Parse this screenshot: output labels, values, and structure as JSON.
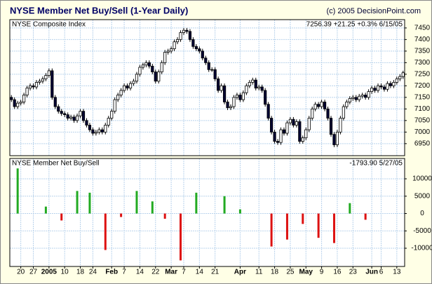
{
  "header": {
    "title": "NYSE Member Net Buy/Sell (1-Year Daily)",
    "credit": "(c) 2005 DecisionPoint.com"
  },
  "chart_data": [
    {
      "type": "candlestick",
      "subtitle": "NYSE Composite Index",
      "annotation": "7256.39 +21.25 +0.3% 6/15/05",
      "up_color": "#ffffff",
      "down_color": "#000033",
      "edge_color": "#000000",
      "grid": true,
      "grid_color": "#b9d3ec",
      "categories": [
        null,
        null,
        null,
        "20",
        null,
        null,
        null,
        "27",
        null,
        null,
        null,
        null,
        "2005",
        null,
        null,
        null,
        null,
        "10",
        null,
        null,
        null,
        null,
        "18",
        null,
        null,
        null,
        "24",
        null,
        null,
        null,
        null,
        null,
        "Feb",
        null,
        null,
        null,
        "7",
        null,
        null,
        null,
        null,
        "14",
        null,
        null,
        null,
        null,
        "22",
        null,
        null,
        null,
        null,
        "Mar",
        null,
        null,
        null,
        "7",
        null,
        null,
        null,
        null,
        "14",
        null,
        null,
        null,
        null,
        "21",
        null,
        null,
        null,
        null,
        null,
        null,
        null,
        "Apr",
        null,
        null,
        null,
        null,
        null,
        "11",
        null,
        null,
        null,
        null,
        "18",
        null,
        null,
        null,
        null,
        "25",
        null,
        null,
        null,
        null,
        "May",
        null,
        null,
        null,
        null,
        "9",
        null,
        null,
        null,
        null,
        "16",
        null,
        null,
        null,
        null,
        "23",
        null,
        null,
        null,
        null,
        null,
        "Jun",
        null,
        null,
        "6",
        null,
        null,
        null,
        null,
        "13",
        null,
        null
      ],
      "open": [
        7150,
        7140,
        7110,
        7125,
        7130,
        7160,
        7190,
        7200,
        7195,
        7215,
        7220,
        7230,
        7245,
        7265,
        7150,
        7110,
        7090,
        7080,
        7075,
        7060,
        7065,
        7050,
        7070,
        7090,
        7050,
        7030,
        7010,
        6995,
        7000,
        7010,
        7000,
        7030,
        7060,
        7090,
        7140,
        7160,
        7180,
        7200,
        7190,
        7210,
        7220,
        7250,
        7280,
        7290,
        7300,
        7285,
        7260,
        7220,
        7260,
        7300,
        7345,
        7350,
        7360,
        7390,
        7400,
        7430,
        7440,
        7435,
        7400,
        7370,
        7360,
        7350,
        7320,
        7300,
        7270,
        7270,
        7230,
        7180,
        7200,
        7130,
        7105,
        7110,
        7150,
        7160,
        7140,
        7170,
        7200,
        7215,
        7225,
        7190,
        7195,
        7180,
        7120,
        7060,
        7000,
        6960,
        6955,
        7010,
        6995,
        7040,
        7055,
        7030,
        7045,
        6960,
        6975,
        7010,
        7060,
        7100,
        7120,
        7110,
        7130,
        7100,
        7060,
        6990,
        6945,
        7000,
        7060,
        7110,
        7130,
        7145,
        7150,
        7140,
        7155,
        7160,
        7150,
        7175,
        7190,
        7180,
        7200,
        7195,
        7185,
        7210,
        7200,
        7215,
        7230,
        7240
      ],
      "high": [
        7160,
        7150,
        7135,
        7140,
        7170,
        7200,
        7210,
        7210,
        7225,
        7230,
        7240,
        7255,
        7275,
        7275,
        7160,
        7120,
        7100,
        7090,
        7085,
        7075,
        7075,
        7080,
        7100,
        7100,
        7060,
        7040,
        7020,
        7010,
        7020,
        7020,
        7040,
        7070,
        7100,
        7150,
        7170,
        7190,
        7210,
        7210,
        7220,
        7230,
        7260,
        7290,
        7300,
        7310,
        7310,
        7295,
        7270,
        7270,
        7310,
        7355,
        7360,
        7370,
        7400,
        7410,
        7440,
        7450,
        7450,
        7445,
        7410,
        7380,
        7370,
        7360,
        7330,
        7310,
        7280,
        7280,
        7240,
        7210,
        7210,
        7140,
        7120,
        7160,
        7170,
        7170,
        7180,
        7210,
        7225,
        7235,
        7235,
        7205,
        7205,
        7190,
        7130,
        7070,
        7010,
        6970,
        7020,
        7020,
        7050,
        7065,
        7065,
        7055,
        7055,
        6985,
        7020,
        7070,
        7110,
        7130,
        7130,
        7140,
        7140,
        7110,
        7070,
        7000,
        7010,
        7070,
        7120,
        7140,
        7155,
        7160,
        7160,
        7165,
        7170,
        7170,
        7185,
        7200,
        7200,
        7210,
        7210,
        7205,
        7220,
        7220,
        7225,
        7240,
        7250,
        7265
      ],
      "low": [
        7130,
        7100,
        7100,
        7115,
        7120,
        7150,
        7180,
        7185,
        7185,
        7205,
        7210,
        7220,
        7235,
        7140,
        7100,
        7080,
        7070,
        7065,
        7050,
        7050,
        7040,
        7040,
        7060,
        7040,
        7020,
        7000,
        6985,
        6985,
        6990,
        6990,
        6990,
        7020,
        7050,
        7080,
        7130,
        7150,
        7170,
        7180,
        7180,
        7200,
        7210,
        7240,
        7270,
        7280,
        7275,
        7250,
        7210,
        7210,
        7250,
        7290,
        7335,
        7340,
        7350,
        7380,
        7390,
        7420,
        7425,
        7390,
        7360,
        7350,
        7340,
        7310,
        7290,
        7260,
        7260,
        7220,
        7170,
        7170,
        7120,
        7095,
        7095,
        7100,
        7140,
        7130,
        7130,
        7160,
        7190,
        7205,
        7180,
        7180,
        7170,
        7110,
        7050,
        6990,
        6950,
        6945,
        6945,
        6985,
        6985,
        7030,
        7020,
        7020,
        6950,
        6950,
        6965,
        7000,
        7050,
        7090,
        7100,
        7100,
        7090,
        7050,
        6980,
        6935,
        6935,
        6990,
        7050,
        7100,
        7120,
        7135,
        7130,
        7130,
        7145,
        7140,
        7140,
        7165,
        7170,
        7170,
        7185,
        7175,
        7175,
        7190,
        7190,
        7205,
        7220,
        7230
      ],
      "close": [
        7140,
        7110,
        7125,
        7130,
        7160,
        7190,
        7200,
        7195,
        7215,
        7220,
        7230,
        7245,
        7265,
        7150,
        7110,
        7090,
        7080,
        7075,
        7060,
        7065,
        7050,
        7070,
        7090,
        7050,
        7030,
        7010,
        6995,
        7000,
        7010,
        7000,
        7030,
        7060,
        7090,
        7140,
        7160,
        7180,
        7200,
        7190,
        7210,
        7220,
        7250,
        7280,
        7290,
        7300,
        7285,
        7260,
        7220,
        7260,
        7300,
        7345,
        7350,
        7360,
        7390,
        7400,
        7430,
        7440,
        7435,
        7400,
        7370,
        7360,
        7350,
        7320,
        7300,
        7270,
        7270,
        7230,
        7180,
        7200,
        7130,
        7105,
        7110,
        7150,
        7160,
        7140,
        7170,
        7200,
        7215,
        7225,
        7190,
        7195,
        7180,
        7120,
        7060,
        7000,
        6960,
        6955,
        7010,
        6995,
        7040,
        7055,
        7030,
        7045,
        6960,
        6975,
        7010,
        7060,
        7100,
        7120,
        7110,
        7130,
        7100,
        7060,
        6990,
        6945,
        7000,
        7060,
        7110,
        7130,
        7145,
        7150,
        7140,
        7155,
        7160,
        7150,
        7175,
        7190,
        7180,
        7200,
        7195,
        7185,
        7210,
        7200,
        7215,
        7230,
        7240,
        7256.39
      ],
      "ylim": [
        6898,
        7486
      ],
      "yticks": [
        6950,
        7000,
        7050,
        7100,
        7150,
        7200,
        7250,
        7300,
        7350,
        7400,
        7450
      ]
    },
    {
      "type": "bar",
      "subtitle": "NYSE Member Net Buy/Sell",
      "annotation": "-1793.90 5/27/05",
      "positive_color": "#22aa22",
      "negative_color": "#dd1111",
      "grid": true,
      "grid_color": "#b9d3ec",
      "values": [
        null,
        null,
        13000,
        null,
        null,
        null,
        null,
        null,
        null,
        null,
        null,
        2000,
        null,
        null,
        null,
        null,
        -2000,
        null,
        null,
        null,
        null,
        6500,
        null,
        null,
        null,
        6000,
        null,
        null,
        null,
        null,
        -10500,
        null,
        null,
        null,
        null,
        -1000,
        null,
        null,
        null,
        null,
        6500,
        null,
        null,
        null,
        null,
        3500,
        null,
        null,
        null,
        -1500,
        null,
        null,
        null,
        null,
        -13500,
        null,
        null,
        null,
        null,
        6000,
        null,
        null,
        null,
        null,
        null,
        null,
        null,
        null,
        5000,
        null,
        null,
        null,
        null,
        1200,
        null,
        null,
        null,
        null,
        null,
        null,
        null,
        null,
        null,
        -9500,
        null,
        null,
        null,
        null,
        -7500,
        null,
        null,
        null,
        null,
        -3000,
        null,
        null,
        null,
        null,
        -7000,
        null,
        null,
        null,
        null,
        -8500,
        null,
        null,
        null,
        null,
        3000,
        null,
        null,
        null,
        null,
        -1793.9,
        null,
        null,
        null,
        null,
        null,
        null,
        null,
        null,
        null,
        null,
        null,
        null
      ],
      "ylim": [
        -15250,
        15860
      ],
      "yticks": [
        -10000,
        -5000,
        0,
        5000,
        10000
      ]
    }
  ]
}
